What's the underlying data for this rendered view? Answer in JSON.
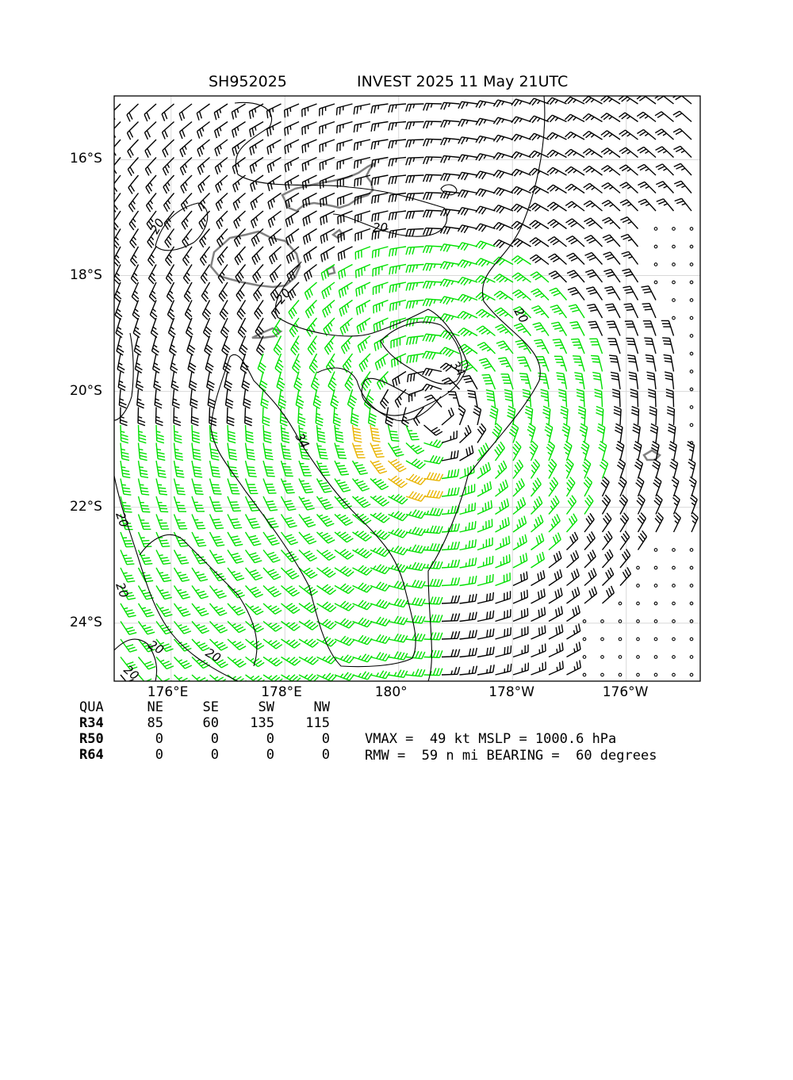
{
  "header": {
    "storm_id": "SH952025",
    "storm_title": "INVEST 2025 11 May 21UTC"
  },
  "map": {
    "lon_range": [
      175.0,
      -174.7
    ],
    "lat_range": [
      -14.9,
      -25.0
    ],
    "lat_ticks": [
      "16°S",
      "18°S",
      "20°S",
      "22°S",
      "24°S"
    ],
    "lon_ticks": [
      "176°E",
      "178°E",
      "180°",
      "178°W",
      "176°W"
    ],
    "contour_labels": [
      "20",
      "20",
      "20",
      "20",
      "20",
      "20",
      "20",
      "20",
      "20",
      "34",
      "34"
    ],
    "colors": {
      "below_34kt": "#000000",
      "gale_34_49kt": "#00e000",
      "storm_50_63kt": "#e8b400",
      "land": "#808080",
      "grid": "#d8d8d8"
    },
    "center": {
      "lat": -20.4,
      "lon": -179.4
    }
  },
  "radii_table": {
    "columns": [
      "QUA",
      "NE",
      "SE",
      "SW",
      "NW"
    ],
    "rows": [
      {
        "label": "R34",
        "values": [
          "85",
          "60",
          "135",
          "115"
        ]
      },
      {
        "label": "R50",
        "values": [
          "0",
          "0",
          "0",
          "0"
        ]
      },
      {
        "label": "R64",
        "values": [
          "0",
          "0",
          "0",
          "0"
        ]
      }
    ]
  },
  "summary": {
    "line1": "VMAX =  49 kt MSLP = 1000.6 hPa",
    "line2": "RMW =  59 n mi BEARING =  60 degrees",
    "vmax_kt": 49,
    "mslp_hpa": 1000.6,
    "rmw_nmi": 59,
    "bearing_deg": 60
  }
}
